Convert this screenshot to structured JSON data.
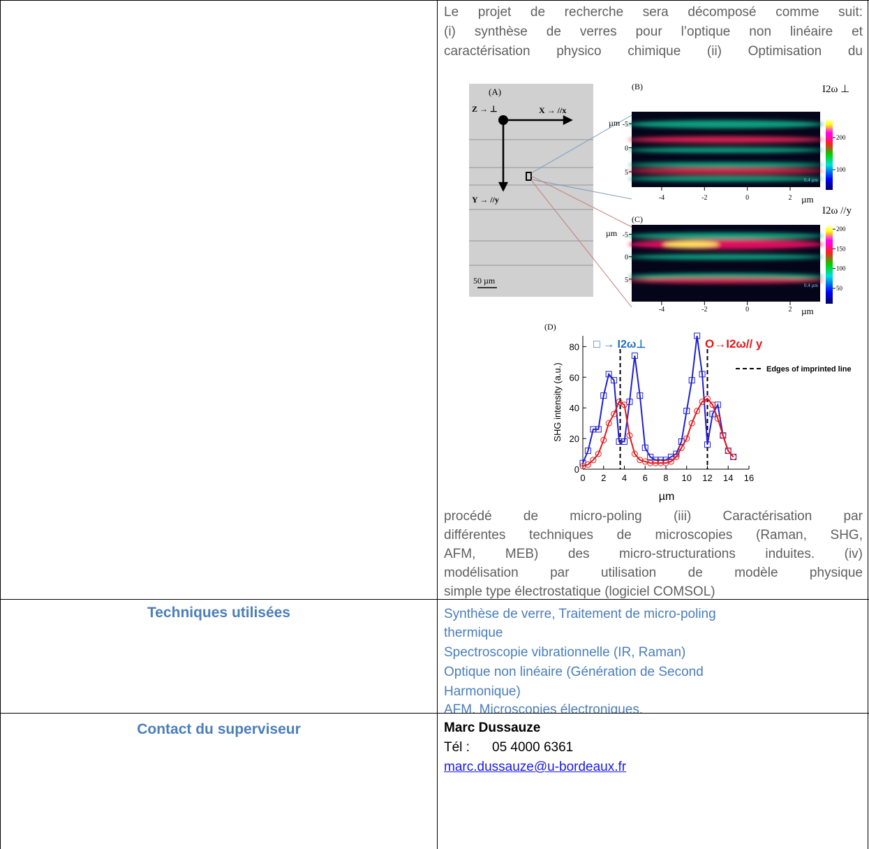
{
  "intro": {
    "top_lines": [
      "Le projet de recherche sera décomposé comme suit:",
      "(i) synthèse de verres pour l’optique non linéaire et",
      "caractérisation physico chimique (ii) Optimisation du"
    ],
    "bottom_lines": [
      "procédé de micro-poling (iii) Caractérisation par",
      "différentes techniques de microscopies (Raman, SHG,",
      "AFM, MEB) des micro-structurations induites. (iv)",
      "modélisation par utilisation de modèle physique",
      "simple type électrostatique (logiciel COMSOL)"
    ]
  },
  "figure": {
    "panel_a": {
      "label": "(A)",
      "z": "Z → ⊥",
      "x": "X → //x",
      "y": "Y → //y",
      "scale": "50 µm"
    },
    "panel_b": {
      "label": "(B)",
      "unit": "µm",
      "ylim": [
        -7.5,
        8.2
      ],
      "yticks": [
        -5,
        0,
        5
      ],
      "xlim": [
        -5.4,
        3.4
      ],
      "xticks": [
        -4,
        -2,
        0,
        2
      ],
      "scale": "0.4 µm",
      "colorbar": {
        "title": "I2ω ⊥",
        "lim": [
          37,
          259
        ],
        "ticks": [
          200,
          100
        ]
      }
    },
    "panel_c": {
      "label": "(C)",
      "unit": "µm",
      "ylim": [
        -7.1,
        10
      ],
      "yticks": [
        -5,
        0,
        5
      ],
      "xlim": [
        -5.4,
        3.4
      ],
      "xticks": [
        -4,
        -2,
        0,
        2
      ],
      "scale": "0.4 µm",
      "colorbar": {
        "title": "I2ω //y",
        "lim": [
          11,
          211
        ],
        "ticks": [
          200,
          150,
          100,
          50
        ]
      }
    },
    "chart_data": {
      "type": "line",
      "label": "(D)",
      "x_label": "µm",
      "y_label": "SHG intensity (a.u.)",
      "x": [
        0,
        0.5,
        1,
        1.5,
        2,
        2.5,
        3,
        3.5,
        4,
        4.5,
        5,
        5.5,
        6,
        6.5,
        7,
        7.5,
        8,
        8.5,
        9,
        9.5,
        10,
        10.5,
        11,
        11.5,
        12,
        12.5,
        13,
        13.5,
        14,
        14.5
      ],
      "series": [
        {
          "name": "□ → I2ω⊥",
          "color": "#1f1fd0",
          "marker": "square",
          "values": [
            4,
            12,
            26,
            26,
            48,
            62,
            58,
            18,
            18,
            44,
            74,
            48,
            14,
            8,
            6,
            6,
            6,
            8,
            10,
            18,
            38,
            58,
            87,
            62,
            16,
            36,
            42,
            22,
            12,
            8
          ]
        },
        {
          "name": "O→I2ω// y",
          "color": "#e01818",
          "marker": "circle",
          "values": [
            2,
            3,
            6,
            10,
            19,
            30,
            36,
            44,
            42,
            22,
            10,
            6,
            5,
            4,
            4,
            4,
            4,
            5,
            8,
            14,
            20,
            30,
            38,
            44,
            46,
            42,
            33,
            22,
            12,
            8
          ]
        }
      ],
      "edges": {
        "name": "Edges of imprinted line",
        "x": [
          3.6,
          12
        ]
      },
      "xlim": [
        0,
        16
      ],
      "xticks": [
        0,
        2,
        4,
        6,
        8,
        10,
        12,
        14,
        16
      ],
      "ylim": [
        0,
        87
      ],
      "yticks": [
        0,
        20,
        40,
        60,
        80
      ]
    }
  },
  "techniques": {
    "label": "Techniques utilisées",
    "lines": [
      "Synthèse de verre, Traitement de micro-poling",
      "thermique",
      "Spectroscopie vibrationnelle (IR, Raman)",
      "Optique non linéaire (Génération de Second",
      "Harmonique)",
      "AFM, Microscopies électroniques."
    ]
  },
  "contact": {
    "label": "Contact du superviseur",
    "name": "Marc Dussauze",
    "tel_label": "Tél :",
    "tel": "05 4000 6361",
    "email": "marc.dussauze@u-bordeaux.fr"
  }
}
